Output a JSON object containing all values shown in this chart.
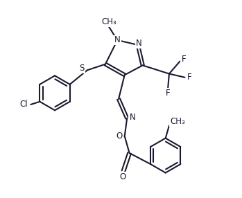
{
  "bg_color": "#ffffff",
  "line_color": "#1a1a2e",
  "line_width": 1.5,
  "font_size": 8.5,
  "figsize": [
    3.49,
    2.86
  ],
  "dpi": 100,
  "xlim": [
    0,
    10
  ],
  "ylim": [
    0,
    8.2
  ]
}
